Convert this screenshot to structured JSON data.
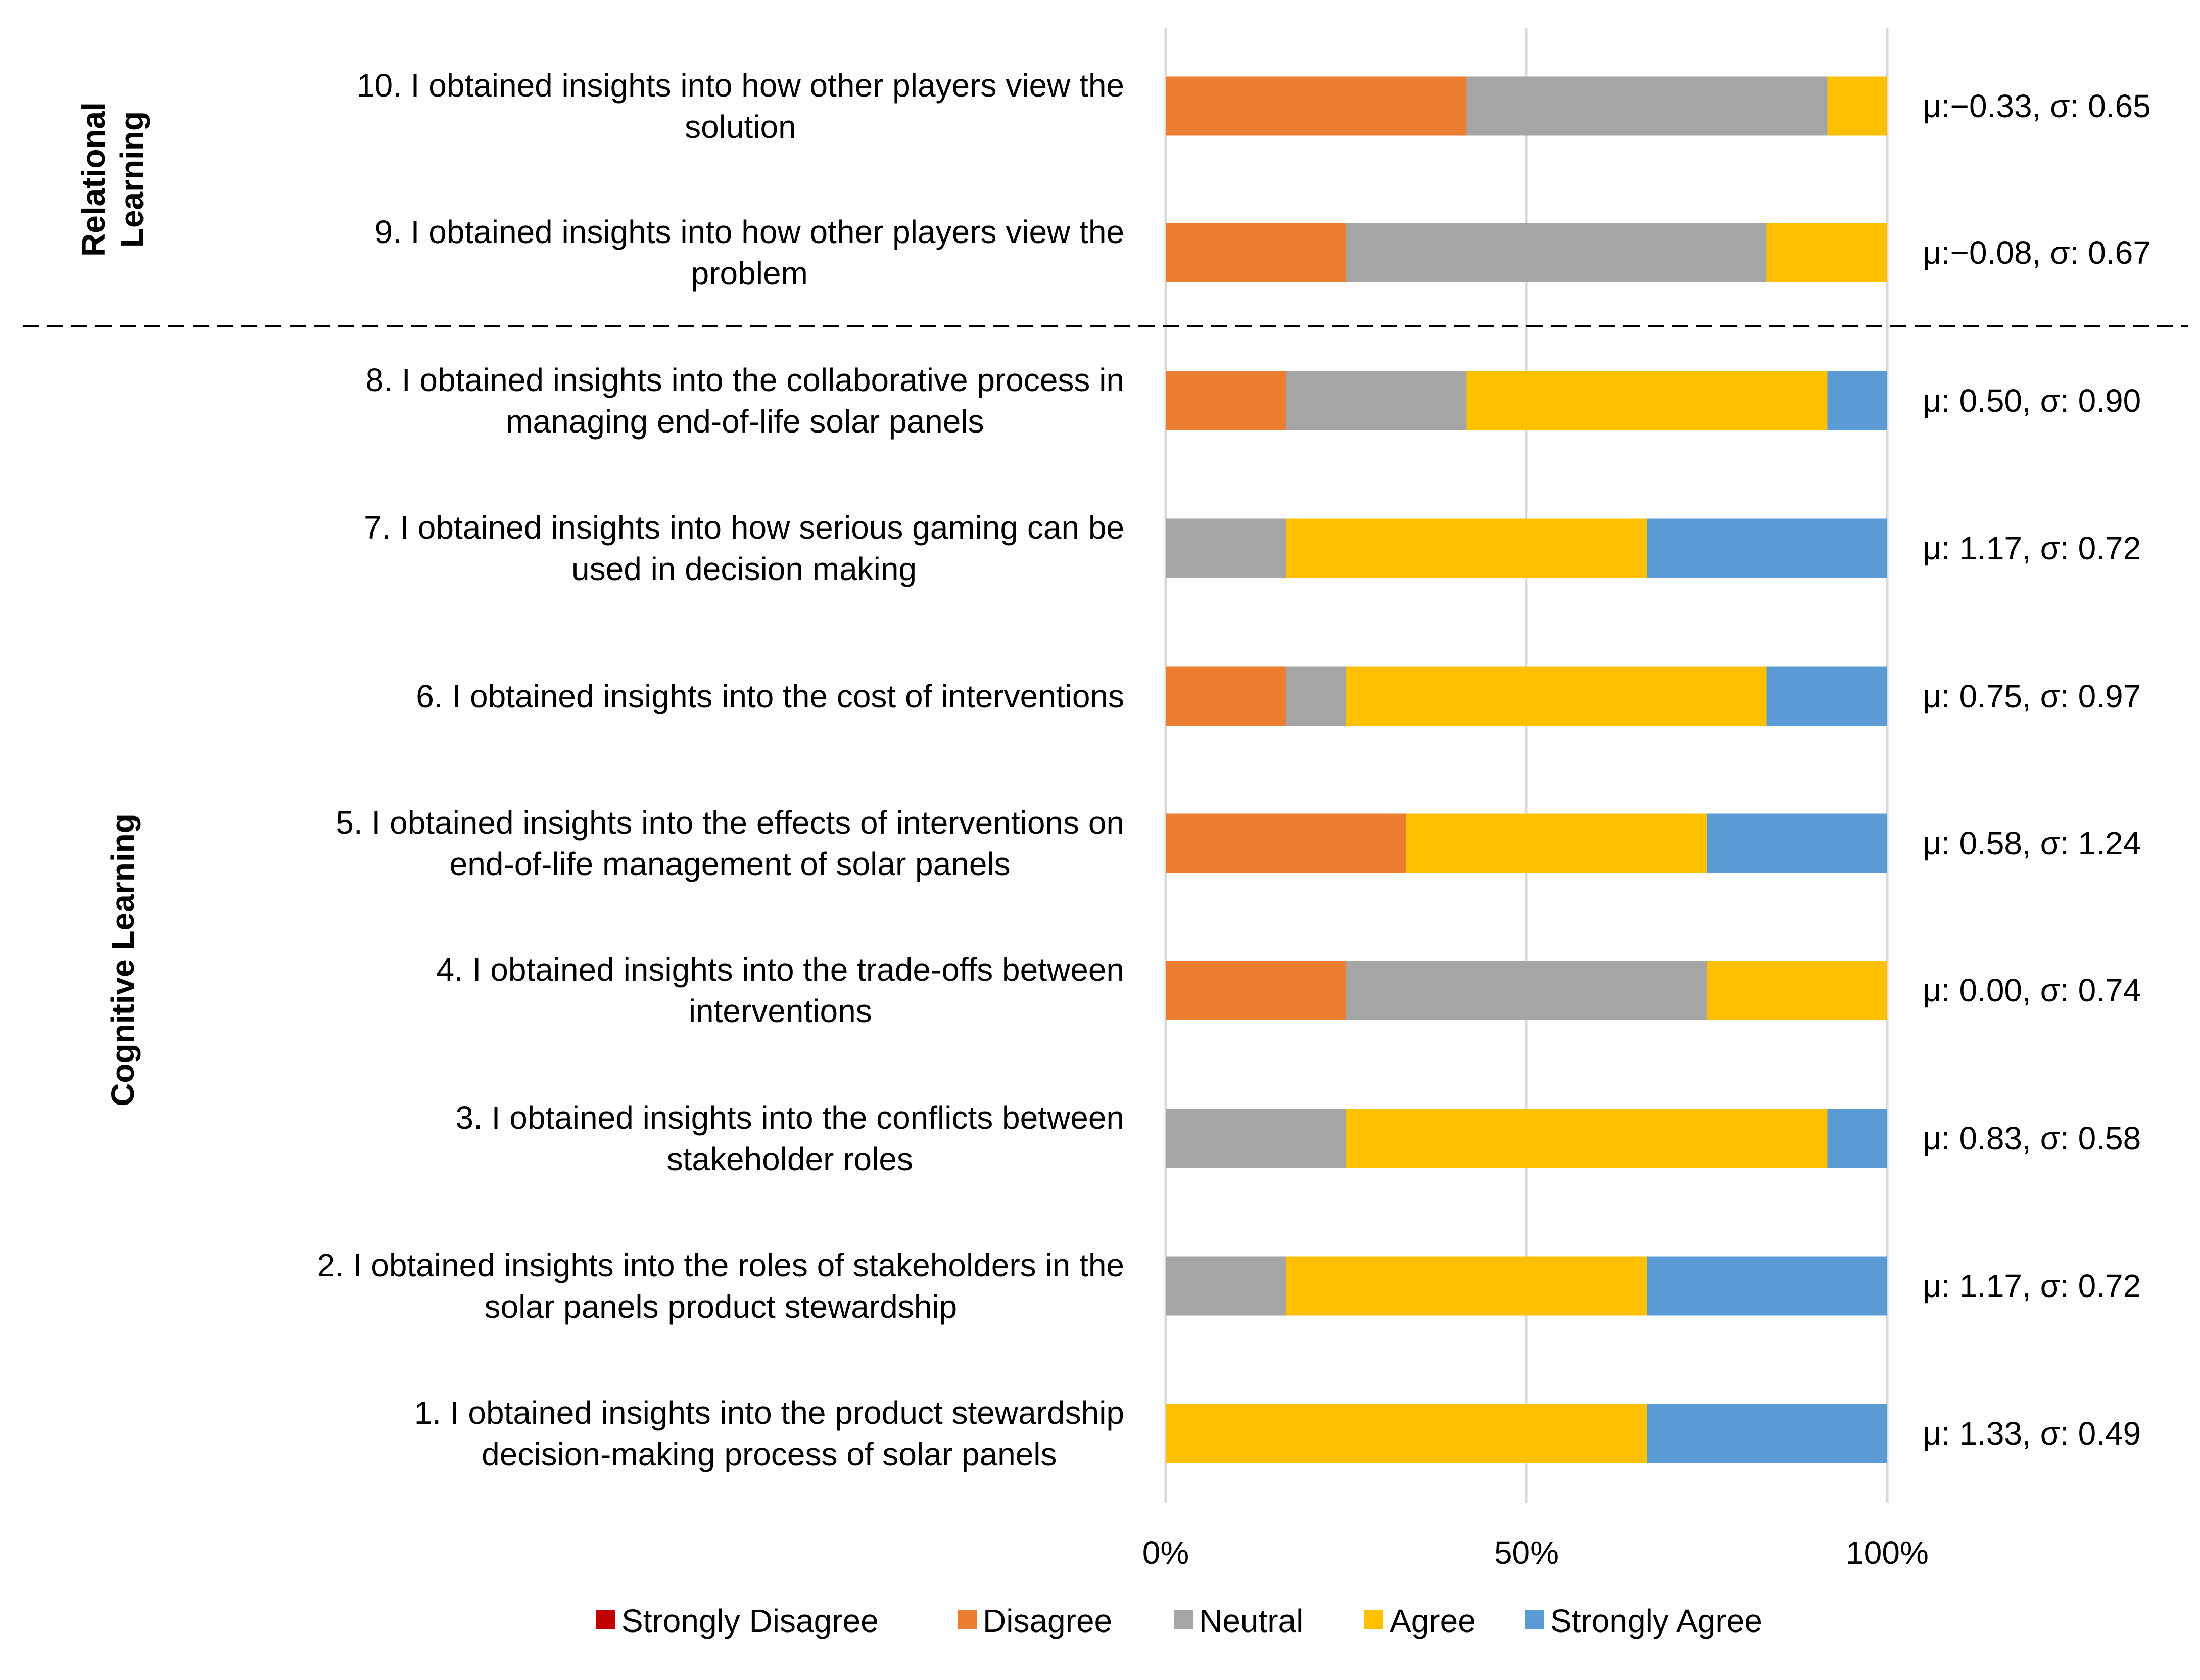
{
  "chart_data": {
    "type": "bar",
    "orientation": "horizontal",
    "stacked": "percent",
    "title": "",
    "xlabel": "",
    "ylabel": "",
    "xlim": [
      0,
      100
    ],
    "x_ticks": [
      "0%",
      "50%",
      "100%"
    ],
    "grid": true,
    "legend_position": "bottom",
    "groups": [
      {
        "label": "Relational Learning",
        "questions": [
          "10",
          "9"
        ]
      },
      {
        "label": "Cognitive Learning",
        "questions": [
          "8",
          "7",
          "6",
          "5",
          "4",
          "3",
          "2",
          "1"
        ]
      }
    ],
    "categories": [
      {
        "id": "10",
        "label_lines": [
          "10. I obtained insights into how other players view the",
          "solution"
        ],
        "stat": "μ:−0.33, σ: 0.65"
      },
      {
        "id": "9",
        "label_lines": [
          "9. I obtained insights into how other players view the",
          "problem"
        ],
        "stat": "μ:−0.08, σ: 0.67"
      },
      {
        "id": "8",
        "label_lines": [
          "8. I obtained insights into the collaborative process in",
          "managing end-of-life solar panels"
        ],
        "stat": "μ: 0.50, σ: 0.90"
      },
      {
        "id": "7",
        "label_lines": [
          "7. I obtained insights into how serious gaming can be",
          "used in decision making"
        ],
        "stat": "μ: 1.17, σ: 0.72"
      },
      {
        "id": "6",
        "label_lines": [
          "6. I obtained insights into the cost of interventions"
        ],
        "stat": "μ: 0.75, σ: 0.97"
      },
      {
        "id": "5",
        "label_lines": [
          "5. I obtained insights into the effects of interventions on",
          "end-of-life management of solar panels"
        ],
        "stat": "μ: 0.58, σ: 1.24"
      },
      {
        "id": "4",
        "label_lines": [
          "4. I obtained insights into the trade-offs between",
          "interventions"
        ],
        "stat": "μ: 0.00, σ: 0.74"
      },
      {
        "id": "3",
        "label_lines": [
          "3. I obtained insights into the conflicts between",
          "stakeholder roles"
        ],
        "stat": "μ: 0.83, σ: 0.58"
      },
      {
        "id": "2",
        "label_lines": [
          "2. I obtained insights into the roles of stakeholders in the",
          "solar panels product stewardship"
        ],
        "stat": "μ: 1.17, σ: 0.72"
      },
      {
        "id": "1",
        "label_lines": [
          "1. I obtained insights into the product stewardship",
          "decision-making process of solar panels"
        ],
        "stat": "μ: 1.33, σ: 0.49"
      }
    ],
    "series": [
      {
        "name": "Strongly Disagree",
        "color": "#c00000",
        "values": [
          0,
          0,
          0,
          0,
          0,
          0,
          0,
          0,
          0,
          0
        ]
      },
      {
        "name": "Disagree",
        "color": "#ed7d31",
        "values": [
          41.7,
          25,
          16.7,
          0,
          16.7,
          33.3,
          25,
          0,
          0,
          0
        ]
      },
      {
        "name": "Neutral",
        "color": "#a5a5a5",
        "values": [
          50,
          58.3,
          25,
          16.7,
          8.3,
          0,
          50,
          25,
          16.7,
          0
        ]
      },
      {
        "name": "Agree",
        "color": "#ffc000",
        "values": [
          8.3,
          16.7,
          50,
          50,
          58.3,
          41.7,
          25,
          66.7,
          50,
          66.7
        ]
      },
      {
        "name": "Strongly Agree",
        "color": "#5b9bd5",
        "values": [
          0,
          0,
          8.3,
          33.3,
          16.7,
          25,
          0,
          8.3,
          33.3,
          33.3
        ]
      }
    ]
  }
}
